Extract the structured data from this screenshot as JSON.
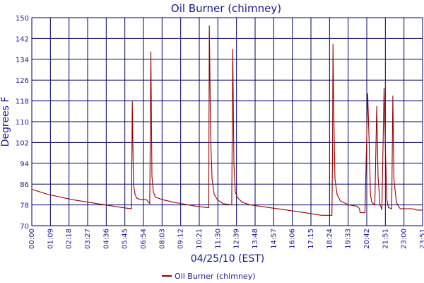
{
  "chart_data": {
    "type": "line",
    "title": "Oil Burner (chimney)",
    "xlabel": "04/25/10 (EST)",
    "ylabel": "Degrees F",
    "ylim": [
      70,
      150
    ],
    "xlim_minutes": [
      0,
      1431
    ],
    "grid": true,
    "legend_position": "bottom",
    "colors": {
      "series": "#990000",
      "grid": "#000066",
      "frame": "#000066",
      "text": "#1a1a8c"
    },
    "yticks": [
      "70",
      "78",
      "86",
      "94",
      "102",
      "110",
      "118",
      "126",
      "134",
      "142",
      "150"
    ],
    "xticks": [
      "00:00",
      "01:09",
      "02:18",
      "03:27",
      "04:36",
      "05:45",
      "06:54",
      "08:03",
      "09:12",
      "10:21",
      "11:30",
      "12:39",
      "13:48",
      "14:57",
      "16:06",
      "17:15",
      "18:24",
      "19:33",
      "20:42",
      "21:51",
      "23:00",
      "23:51"
    ],
    "series": [
      {
        "name": "Oil Burner (chimney)",
        "x_minutes": [
          0,
          60,
          150,
          240,
          330,
          365,
          368,
          372,
          378,
          385,
          400,
          420,
          432,
          436,
          440,
          445,
          452,
          465,
          480,
          520,
          600,
          640,
          648,
          650,
          655,
          660,
          668,
          680,
          700,
          732,
          736,
          740,
          745,
          752,
          770,
          800,
          900,
          1000,
          1060,
          1099,
          1101,
          1103,
          1106,
          1110,
          1118,
          1130,
          1160,
          1190,
          1196,
          1200,
          1202,
          1210,
          1220,
          1230,
          1236,
          1240,
          1245,
          1256,
          1263,
          1268,
          1275,
          1280,
          1282,
          1290,
          1295,
          1300,
          1306,
          1318,
          1322,
          1326,
          1335,
          1345,
          1350,
          1364,
          1368,
          1372,
          1376,
          1385,
          1395,
          1410,
          1431
        ],
        "values": [
          84,
          82,
          80,
          78.5,
          77,
          76.5,
          118,
          86,
          82,
          80.5,
          80,
          80,
          78.5,
          137,
          89,
          83,
          81,
          80.5,
          80,
          79,
          77.5,
          77,
          77,
          147,
          104,
          88,
          82,
          80,
          78.5,
          78,
          138,
          94,
          83,
          81,
          79,
          78,
          76.5,
          75,
          74,
          74,
          96,
          140,
          112,
          88,
          82,
          79.5,
          78,
          77.5,
          77,
          76.5,
          75,
          75,
          75,
          121,
          100,
          82,
          79,
          78,
          116,
          89,
          78,
          77,
          76,
          123,
          99,
          80,
          77,
          76.5,
          120,
          88,
          79,
          77,
          76.5,
          76.5,
          76.5,
          76.5,
          76.5,
          76.5,
          76.5,
          76,
          76
        ]
      }
    ]
  }
}
